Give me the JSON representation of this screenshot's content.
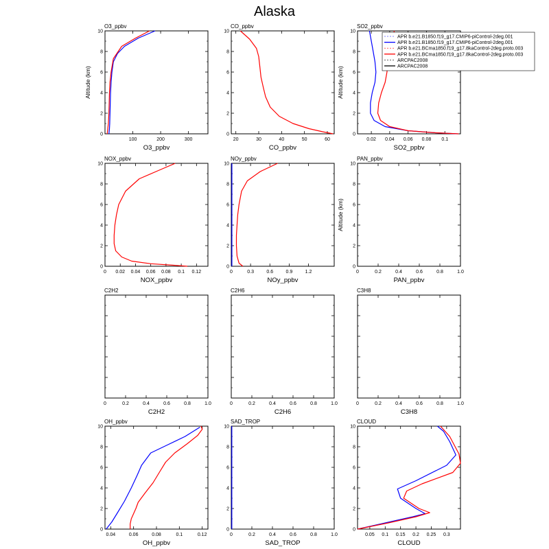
{
  "title": "Alaska",
  "legend": {
    "placement": "top-right of SO2 panel",
    "entries": [
      {
        "label": "APR b.e21.B1850.f19_g17.CMIP6-piControl-2deg.001",
        "color": "#0000ff",
        "width": 0.6,
        "dash": "2,2"
      },
      {
        "label": "APR b.e21.B1850.f19_g17.CMIP6-piControl-2deg.001",
        "color": "#0000ff",
        "width": 1.3,
        "dash": ""
      },
      {
        "label": "APR b.e21.BCma1850.f19_g17.8kaControl-2deg.proto.003",
        "color": "#ff0000",
        "width": 0.6,
        "dash": "2,2"
      },
      {
        "label": "APR b.e21.BCma1850.f19_g17.8kaControl-2deg.proto.003",
        "color": "#ff0000",
        "width": 1.3,
        "dash": ""
      },
      {
        "label": "ARCPAC2008",
        "color": "#000000",
        "width": 0.6,
        "dash": "2,2"
      },
      {
        "label": "ARCPAC2008",
        "color": "#000000",
        "width": 1.3,
        "dash": ""
      }
    ]
  },
  "chart_data": [
    {
      "type": "line",
      "name": "O3_ppbv",
      "xlabel": "O3_ppbv",
      "ylabel": "Altitude (km)",
      "xlim": [
        0,
        370
      ],
      "ylim": [
        0,
        10
      ],
      "xticks": [
        100,
        200,
        300
      ],
      "xtick_labels": [
        "100",
        "200",
        "300"
      ],
      "yticks": [
        0,
        2,
        4,
        6,
        8,
        10
      ],
      "show_yticklabels": true,
      "series": [
        {
          "color": "#0000ff",
          "points": [
            [
              14,
              0
            ],
            [
              16,
              0.5
            ],
            [
              17,
              1
            ],
            [
              18,
              2
            ],
            [
              19,
              3
            ],
            [
              20,
              4
            ],
            [
              22,
              5
            ],
            [
              25,
              6
            ],
            [
              30,
              7
            ],
            [
              45,
              7.8
            ],
            [
              70,
              8.5
            ],
            [
              120,
              9.3
            ],
            [
              180,
              10
            ]
          ]
        },
        {
          "color": "#ff0000",
          "points": [
            [
              8,
              0
            ],
            [
              10,
              0.5
            ],
            [
              12,
              1
            ],
            [
              14,
              2
            ],
            [
              15,
              3
            ],
            [
              16,
              4
            ],
            [
              18,
              5
            ],
            [
              22,
              6
            ],
            [
              30,
              7.3
            ],
            [
              60,
              8.5
            ],
            [
              110,
              9.3
            ],
            [
              160,
              10
            ]
          ]
        }
      ]
    },
    {
      "type": "line",
      "name": "CO_ppbv",
      "xlabel": "CO_ppbv",
      "ylabel": "",
      "xlim": [
        18,
        63
      ],
      "ylim": [
        0,
        10
      ],
      "xticks": [
        20,
        30,
        40,
        50,
        60
      ],
      "xtick_labels": [
        "20",
        "30",
        "40",
        "50",
        "60"
      ],
      "yticks": [
        0,
        2,
        4,
        6,
        8,
        10
      ],
      "show_yticklabels": true,
      "series": [
        {
          "color": "#ff0000",
          "points": [
            [
              62.5,
              0
            ],
            [
              58,
              0.2
            ],
            [
              52,
              0.5
            ],
            [
              45,
              1
            ],
            [
              39,
              1.7
            ],
            [
              35,
              2.6
            ],
            [
              33,
              3.6
            ],
            [
              32,
              4.5
            ],
            [
              31,
              5.5
            ],
            [
              30.5,
              6.5
            ],
            [
              30,
              7.5
            ],
            [
              29,
              8.3
            ],
            [
              26,
              9.2
            ],
            [
              22,
              10
            ]
          ]
        }
      ]
    },
    {
      "type": "line",
      "name": "SO2_ppbv",
      "xlabel": "SO2_ppbv",
      "ylabel": "Altitude (km)",
      "xlim": [
        0.005,
        0.117
      ],
      "ylim": [
        0,
        10
      ],
      "xticks": [
        0.02,
        0.04,
        0.06,
        0.08,
        0.1
      ],
      "xtick_labels": [
        "0.02",
        "0.04",
        "0.06",
        "0.08",
        "0.1"
      ],
      "yticks": [
        0,
        2,
        4,
        6,
        8,
        10
      ],
      "show_yticklabels": true,
      "series": [
        {
          "color": "#0000ff",
          "points": [
            [
              0.114,
              0
            ],
            [
              0.09,
              0.1
            ],
            [
              0.06,
              0.3
            ],
            [
              0.035,
              0.7
            ],
            [
              0.023,
              1.3
            ],
            [
              0.019,
              2
            ],
            [
              0.019,
              3
            ],
            [
              0.021,
              4
            ],
            [
              0.024,
              5
            ],
            [
              0.025,
              6
            ],
            [
              0.024,
              7
            ],
            [
              0.022,
              8
            ],
            [
              0.02,
              9
            ],
            [
              0.018,
              10
            ]
          ]
        },
        {
          "color": "#ff0000",
          "points": [
            [
              0.115,
              0
            ],
            [
              0.09,
              0.1
            ],
            [
              0.06,
              0.3
            ],
            [
              0.04,
              0.7
            ],
            [
              0.03,
              1.3
            ],
            [
              0.027,
              2
            ],
            [
              0.028,
              3
            ],
            [
              0.031,
              4
            ],
            [
              0.035,
              5
            ],
            [
              0.037,
              6
            ],
            [
              0.038,
              7
            ],
            [
              0.039,
              8
            ],
            [
              0.042,
              9
            ],
            [
              0.045,
              10
            ]
          ]
        }
      ]
    },
    {
      "type": "line",
      "name": "NOX_ppbv",
      "xlabel": "NOX_ppbv",
      "ylabel": "",
      "xlim": [
        0,
        0.135
      ],
      "ylim": [
        0,
        10
      ],
      "xticks": [
        0,
        0.02,
        0.04,
        0.06,
        0.08,
        0.1,
        0.12
      ],
      "xtick_labels": [
        "0",
        "0.02",
        "0.04",
        "0.06",
        "0.08",
        "0.1",
        "0.12"
      ],
      "yticks": [
        0,
        2,
        4,
        6,
        8,
        10
      ],
      "show_yticklabels": true,
      "series": [
        {
          "color": "#ff0000",
          "points": [
            [
              0.108,
              0
            ],
            [
              0.09,
              0.1
            ],
            [
              0.06,
              0.25
            ],
            [
              0.035,
              0.5
            ],
            [
              0.022,
              0.9
            ],
            [
              0.014,
              1.5
            ],
            [
              0.012,
              2.2
            ],
            [
              0.012,
              3
            ],
            [
              0.013,
              4
            ],
            [
              0.015,
              5
            ],
            [
              0.018,
              6
            ],
            [
              0.027,
              7.3
            ],
            [
              0.045,
              8.5
            ],
            [
              0.07,
              9.3
            ],
            [
              0.092,
              10
            ]
          ]
        }
      ]
    },
    {
      "type": "line",
      "name": "NOy_ppbv",
      "xlabel": "NOy_ppbv",
      "ylabel": "",
      "xlim": [
        0,
        1.6
      ],
      "ylim": [
        0,
        10
      ],
      "xticks": [
        0,
        0.3,
        0.6,
        0.9,
        1.2
      ],
      "xtick_labels": [
        "0",
        "0.3",
        "0.6",
        "0.9",
        "1.2"
      ],
      "yticks": [
        0,
        2,
        4,
        6,
        8,
        10
      ],
      "show_yticklabels": true,
      "series": [
        {
          "color": "#0000ff",
          "points": [
            [
              0.01,
              0
            ],
            [
              0.01,
              10
            ]
          ]
        },
        {
          "color": "#ff0000",
          "points": [
            [
              0.18,
              0
            ],
            [
              0.12,
              0.3
            ],
            [
              0.09,
              1
            ],
            [
              0.08,
              2
            ],
            [
              0.08,
              3
            ],
            [
              0.09,
              4
            ],
            [
              0.1,
              5
            ],
            [
              0.12,
              6
            ],
            [
              0.16,
              7.3
            ],
            [
              0.25,
              8.3
            ],
            [
              0.45,
              9.2
            ],
            [
              0.72,
              10
            ]
          ]
        }
      ]
    },
    {
      "type": "line",
      "name": "PAN_ppbv",
      "xlabel": "PAN_ppbv",
      "ylabel": "Altitude (km)",
      "xlim": [
        0,
        1
      ],
      "ylim": [
        0,
        10
      ],
      "xticks": [
        0,
        0.2,
        0.4,
        0.6,
        0.8,
        1.0
      ],
      "xtick_labels": [
        "0",
        "0.2",
        "0.4",
        "0.6",
        "0.8",
        "1.0"
      ],
      "yticks": [
        0,
        2,
        4,
        6,
        8,
        10
      ],
      "show_yticklabels": true,
      "series": []
    },
    {
      "type": "line",
      "name": "C2H2",
      "xlabel": "C2H2",
      "ylabel": "",
      "xlim": [
        0,
        1
      ],
      "ylim": [
        0,
        10
      ],
      "xticks": [
        0,
        0.2,
        0.4,
        0.6,
        0.8,
        1.0
      ],
      "xtick_labels": [
        "0",
        "0.2",
        "0.4",
        "0.6",
        "0.8",
        "1.0"
      ],
      "yticks": [
        0,
        2,
        4,
        6,
        8,
        10
      ],
      "show_yticklabels": false,
      "series": []
    },
    {
      "type": "line",
      "name": "C2H6",
      "xlabel": "C2H6",
      "ylabel": "",
      "xlim": [
        0,
        1
      ],
      "ylim": [
        0,
        10
      ],
      "xticks": [
        0,
        0.2,
        0.4,
        0.6,
        0.8,
        1.0
      ],
      "xtick_labels": [
        "0",
        "0.2",
        "0.4",
        "0.6",
        "0.8",
        "1.0"
      ],
      "yticks": [
        0,
        2,
        4,
        6,
        8,
        10
      ],
      "show_yticklabels": false,
      "series": []
    },
    {
      "type": "line",
      "name": "C3H8",
      "xlabel": "C3H8",
      "ylabel": "",
      "xlim": [
        0,
        1
      ],
      "ylim": [
        0,
        10
      ],
      "xticks": [
        0,
        0.2,
        0.4,
        0.6,
        0.8,
        1.0
      ],
      "xtick_labels": [
        "0",
        "0.2",
        "0.4",
        "0.6",
        "0.8",
        "1.0"
      ],
      "yticks": [
        0,
        2,
        4,
        6,
        8,
        10
      ],
      "show_yticklabels": false,
      "series": []
    },
    {
      "type": "line",
      "name": "OH_ppbv",
      "xlabel": "OH_ppbv",
      "ylabel": "",
      "xlim": [
        0.035,
        0.125
      ],
      "ylim": [
        0,
        10
      ],
      "xticks": [
        0.04,
        0.06,
        0.08,
        0.1,
        0.12
      ],
      "xtick_labels": [
        "0.04",
        "0.06",
        "0.08",
        "0.1",
        "0.12"
      ],
      "yticks": [
        0,
        2,
        4,
        6,
        8,
        10
      ],
      "show_yticklabels": true,
      "series": [
        {
          "color": "#0000ff",
          "points": [
            [
              0.036,
              0
            ],
            [
              0.041,
              0.7
            ],
            [
              0.046,
              1.6
            ],
            [
              0.052,
              2.7
            ],
            [
              0.058,
              4
            ],
            [
              0.063,
              5.2
            ],
            [
              0.067,
              6.2
            ],
            [
              0.075,
              7.4
            ],
            [
              0.09,
              8.2
            ],
            [
              0.105,
              9
            ],
            [
              0.118,
              9.9
            ]
          ]
        },
        {
          "color": "#ff0000",
          "points": [
            [
              0.057,
              0
            ],
            [
              0.057,
              0.5
            ],
            [
              0.058,
              1
            ],
            [
              0.062,
              2
            ],
            [
              0.064,
              2.6
            ],
            [
              0.07,
              3.5
            ],
            [
              0.077,
              4.5
            ],
            [
              0.083,
              5.6
            ],
            [
              0.088,
              6.5
            ],
            [
              0.096,
              7.4
            ],
            [
              0.107,
              8.3
            ],
            [
              0.116,
              9.1
            ],
            [
              0.12,
              9.7
            ],
            [
              0.119,
              10
            ]
          ]
        }
      ]
    },
    {
      "type": "line",
      "name": "SAD_TROP",
      "xlabel": "SAD_TROP",
      "ylabel": "",
      "xlim": [
        0,
        1
      ],
      "ylim": [
        0,
        10
      ],
      "xticks": [
        0,
        0.2,
        0.4,
        0.6,
        0.8,
        1.0
      ],
      "xtick_labels": [
        "0",
        "0.2",
        "0.4",
        "0.6",
        "0.8",
        "1.0"
      ],
      "yticks": [
        0,
        2,
        4,
        6,
        8,
        10
      ],
      "show_yticklabels": true,
      "series": [
        {
          "color": "#0000ff",
          "points": [
            [
              0.005,
              0
            ],
            [
              0.005,
              10
            ]
          ]
        }
      ]
    },
    {
      "type": "line",
      "name": "CLOUD",
      "xlabel": "CLOUD",
      "ylabel": "",
      "xlim": [
        0.01,
        0.345
      ],
      "ylim": [
        0,
        10
      ],
      "xticks": [
        0.05,
        0.1,
        0.15,
        0.2,
        0.25,
        0.3
      ],
      "xtick_labels": [
        "0.05",
        "0.1",
        "0.15",
        "0.2",
        "0.25",
        "0.3"
      ],
      "yticks": [
        0,
        2,
        4,
        6,
        8,
        10
      ],
      "show_yticklabels": true,
      "series": [
        {
          "color": "#0000ff",
          "points": [
            [
              0.01,
              0
            ],
            [
              0.1,
              0.6
            ],
            [
              0.19,
              1.2
            ],
            [
              0.23,
              1.5
            ],
            [
              0.2,
              2
            ],
            [
              0.15,
              3
            ],
            [
              0.14,
              3.9
            ],
            [
              0.2,
              4.7
            ],
            [
              0.3,
              6.2
            ],
            [
              0.33,
              7.2
            ],
            [
              0.31,
              8.5
            ],
            [
              0.29,
              9.5
            ],
            [
              0.27,
              10
            ]
          ]
        },
        {
          "color": "#ff0000",
          "points": [
            [
              0.01,
              0
            ],
            [
              0.11,
              0.6
            ],
            [
              0.2,
              1.2
            ],
            [
              0.245,
              1.6
            ],
            [
              0.21,
              2
            ],
            [
              0.16,
              3
            ],
            [
              0.17,
              3.7
            ],
            [
              0.22,
              4.4
            ],
            [
              0.32,
              5.5
            ],
            [
              0.345,
              6.4
            ],
            [
              0.34,
              7.3
            ],
            [
              0.31,
              9
            ],
            [
              0.28,
              10
            ]
          ]
        }
      ]
    }
  ]
}
